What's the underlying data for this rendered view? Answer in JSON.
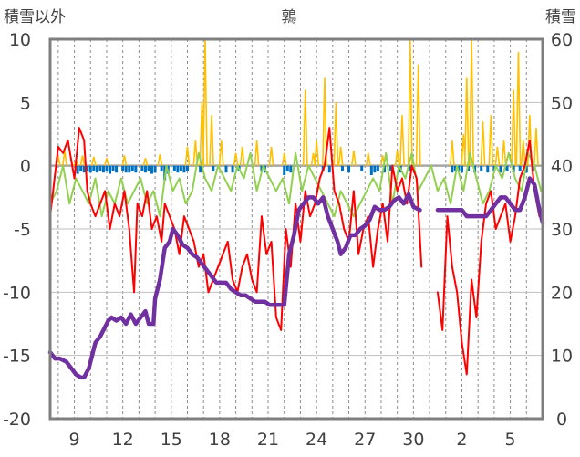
{
  "chart_data": {
    "type": "line",
    "title": "鶉",
    "ylabel_left": "積雪以外",
    "ylabel_right": "積雪",
    "ylim_left": [
      -20,
      10
    ],
    "ylim_right": [
      0,
      60
    ],
    "yticks_left": [
      "10",
      "5",
      "0",
      "-5",
      "-10",
      "-15",
      "-20"
    ],
    "yticks_right": [
      "60",
      "50",
      "40",
      "30",
      "20",
      "10",
      "0"
    ],
    "x_range_days": [
      7.5,
      38.0
    ],
    "xticks": [
      {
        "day": 9,
        "label": "9"
      },
      {
        "day": 12,
        "label": "12"
      },
      {
        "day": 15,
        "label": "15"
      },
      {
        "day": 18,
        "label": "18"
      },
      {
        "day": 21,
        "label": "21"
      },
      {
        "day": 24,
        "label": "24"
      },
      {
        "day": 27,
        "label": "27"
      },
      {
        "day": 30,
        "label": "30"
      },
      {
        "day": 33,
        "label": "2"
      },
      {
        "day": 36,
        "label": "5"
      }
    ],
    "grid": "dashed vertical lines daily, solid horizontal lines every 5",
    "colors": {
      "frame": "#7f7f7f",
      "red": "#ff0000",
      "lightgreen": "#92d050",
      "orange": "#ffc000",
      "blue": "#0070c0",
      "purple": "#7030a0",
      "zero_line": "#a6a6a6"
    },
    "series": [
      {
        "axis": "left",
        "style": "line",
        "color": "#ff0000",
        "x": [
          7.5,
          8.0,
          8.3,
          8.6,
          9.0,
          9.3,
          9.6,
          9.8,
          10.0,
          10.3,
          10.6,
          10.9,
          11.2,
          11.5,
          11.8,
          12.1,
          12.4,
          12.7,
          12.9,
          13.2,
          13.5,
          13.8,
          14.1,
          14.4,
          14.6,
          14.9,
          15.2,
          15.5,
          15.8,
          16.1,
          16.4,
          16.7,
          17.0,
          17.3,
          17.6,
          17.9,
          18.2,
          18.5,
          18.8,
          19.1,
          19.4,
          19.7,
          20.0,
          20.3,
          20.6,
          20.9,
          21.2,
          21.5,
          21.8,
          22.1,
          22.4,
          22.7,
          23.0,
          23.3,
          23.6,
          23.9,
          24.2,
          24.5,
          24.8,
          25.1,
          25.4,
          25.7,
          26.0,
          26.3,
          26.6,
          26.9,
          27.2,
          27.5,
          27.8,
          28.1,
          28.4,
          28.7,
          29.0,
          29.3,
          29.6,
          29.9,
          30.2,
          30.5
        ],
        "y": [
          -4,
          1.5,
          1,
          2,
          -1,
          3,
          2,
          -2,
          -3,
          -4,
          -3,
          -2,
          -5,
          -3,
          -4,
          -2,
          -5,
          -10,
          -3,
          -4,
          -2,
          -5,
          -4,
          -6,
          -3,
          -4,
          -5,
          -7,
          -4,
          -5,
          -6,
          -8,
          -7,
          -10,
          -9,
          -8,
          -7,
          -6,
          -9,
          -10,
          -8,
          -7,
          -9,
          -10,
          -4,
          -7,
          -6,
          -12,
          -13,
          -5,
          -8,
          -3,
          -6,
          -2,
          -4,
          -3,
          -1,
          0,
          3,
          -2,
          -3,
          -5,
          -6,
          -2,
          -7,
          -5,
          -4,
          -8,
          -5,
          -3,
          -6,
          0,
          -2,
          -1,
          -3,
          0,
          -1,
          -8
        ]
      },
      {
        "axis": "left",
        "style": "line",
        "color": "#ff0000",
        "x": [
          31.5,
          31.8,
          32.1,
          32.4,
          32.7,
          33.0,
          33.3,
          33.6,
          33.9,
          34.2,
          34.5,
          34.8,
          35.1,
          35.4,
          35.7,
          36.0,
          36.3,
          36.6,
          36.9,
          37.2,
          37.5,
          37.8
        ],
        "y": [
          -10,
          -13,
          -4,
          -8,
          -10,
          -14,
          -16.5,
          -9,
          -12,
          -6,
          -3,
          -2,
          -5,
          -4,
          -3,
          -6,
          -4,
          -1,
          0,
          2,
          -2,
          -4
        ]
      },
      {
        "axis": "left",
        "style": "line",
        "color": "#92d050",
        "x": [
          7.5,
          7.9,
          8.3,
          8.7,
          9.1,
          9.5,
          9.9,
          10.3,
          10.7,
          11.1,
          11.5,
          11.9,
          12.3,
          12.7,
          13.1,
          13.5,
          13.9,
          14.3,
          14.7,
          15.1,
          15.5,
          15.9,
          16.3,
          16.7,
          17.1,
          17.5,
          17.9,
          18.3,
          18.7,
          19.1,
          19.5,
          19.9,
          20.3,
          20.7,
          21.1,
          21.5,
          21.9,
          22.3,
          22.7,
          23.1,
          23.5,
          23.9,
          24.3,
          24.7,
          25.1,
          25.5,
          25.9,
          26.3,
          26.7,
          27.1,
          27.5,
          27.9,
          28.3,
          28.7,
          29.1,
          29.5,
          29.9,
          30.3,
          30.7,
          31.1,
          31.5,
          31.9,
          32.3,
          32.7,
          33.1,
          33.5,
          33.9,
          34.3,
          34.7,
          35.1,
          35.5,
          35.9,
          36.3,
          36.7,
          37.1,
          37.5,
          37.9
        ],
        "y": [
          -3,
          -2,
          0,
          -3,
          -1,
          -2,
          -3,
          -1,
          -4,
          -2,
          -3,
          -1,
          -3,
          -2,
          -1,
          -3,
          -2,
          -4,
          0,
          -2,
          -1,
          -3,
          -2,
          1,
          -1,
          -2,
          0,
          -1,
          -2,
          0,
          -1,
          1,
          -2,
          0,
          -1,
          -2,
          -1,
          -3,
          1,
          -2,
          0,
          -1,
          -2,
          -3,
          -4,
          -2,
          -3,
          -4,
          -3,
          -2,
          -1,
          -2,
          1,
          -3,
          0,
          -1,
          1,
          -2,
          -1,
          0,
          -2,
          -1,
          -3,
          0,
          -2,
          1,
          -1,
          -3,
          -2,
          0,
          -1,
          1,
          -1,
          -2,
          1,
          0,
          -2
        ]
      },
      {
        "axis": "left",
        "style": "spikes",
        "color": "#ffc000",
        "x": [
          8.0,
          8.4,
          9.1,
          9.5,
          10.2,
          11.0,
          12.1,
          13.4,
          14.3,
          16.0,
          16.5,
          16.9,
          17.1,
          17.5,
          18.1,
          19.0,
          19.4,
          20.3,
          21.2,
          22.0,
          23.3,
          23.8,
          24.0,
          24.5,
          25.2,
          25.5,
          26.3,
          27.2,
          28.1,
          29.0,
          29.3,
          29.8,
          30.3,
          32.4,
          33.1,
          33.3,
          33.6,
          34.3,
          34.8,
          35.2,
          35.6,
          36.2,
          36.5,
          36.8,
          37.2,
          37.6
        ],
        "y": [
          0.8,
          1.2,
          0.5,
          0.8,
          0.7,
          0.6,
          0.8,
          0.6,
          0.9,
          1.5,
          2,
          5,
          10,
          4,
          2,
          1,
          1.5,
          2,
          1.5,
          1,
          6,
          1,
          2,
          7,
          5,
          1.5,
          1.2,
          1,
          0.8,
          1.2,
          4,
          10,
          8,
          2,
          2.5,
          7,
          10,
          3.5,
          4,
          1.5,
          2,
          6,
          9,
          2,
          4,
          3
        ]
      },
      {
        "axis": "left",
        "style": "bars",
        "color": "#0070c0",
        "x": [
          9.2,
          9.4,
          9.6,
          9.8,
          10.0,
          10.2,
          10.4,
          10.6,
          10.8,
          11.0,
          11.2,
          11.4,
          11.6,
          12.0,
          12.2,
          12.4,
          12.6,
          12.8,
          13.2,
          13.4,
          13.6,
          13.8,
          14.0,
          14.4,
          14.6,
          14.8,
          15.2,
          15.4,
          15.6,
          15.8,
          16.0,
          16.8,
          17.6,
          18.4,
          18.8,
          19.2,
          20.6,
          20.8,
          22.0,
          22.2,
          22.4,
          24.4,
          24.8,
          25.6,
          26.0,
          26.8,
          27.4,
          27.6,
          27.8,
          28.2,
          28.6,
          29.2,
          29.8,
          32.4,
          32.6,
          32.8,
          33.0,
          33.4,
          33.8,
          34.2,
          34.6,
          35.0,
          35.4,
          35.8,
          36.2,
          36.6,
          37.0,
          37.4
        ],
        "y": [
          -0.5,
          -0.3,
          -0.4,
          -0.3,
          -0.4,
          -0.3,
          -0.4,
          -0.3,
          -0.4,
          -0.3,
          -0.5,
          -0.3,
          -0.4,
          -0.3,
          -0.4,
          -0.4,
          -0.3,
          -0.4,
          -0.3,
          -0.4,
          -0.3,
          -0.5,
          -0.4,
          -0.3,
          -1.0,
          -0.5,
          -0.3,
          -0.4,
          -0.3,
          -0.4,
          -0.3,
          -0.4,
          -0.3,
          -0.4,
          -0.4,
          -0.3,
          -0.3,
          -0.4,
          -0.6,
          -0.3,
          -0.4,
          -0.3,
          -0.4,
          -0.3,
          -0.4,
          -0.3,
          -0.6,
          -0.4,
          -0.3,
          -0.4,
          -0.3,
          -0.4,
          -0.3,
          -0.4,
          -0.3,
          -0.3,
          -0.4,
          -0.3,
          -0.4,
          -0.3,
          -0.4,
          -0.3,
          -0.4,
          -0.3,
          -0.4,
          -0.3,
          -0.4,
          -0.3
        ]
      },
      {
        "axis": "right",
        "style": "thick-line",
        "color": "#7030a0",
        "x": [
          7.5,
          7.8,
          8.1,
          8.5,
          8.8,
          9.1,
          9.4,
          9.6,
          9.9,
          10.1,
          10.3,
          10.6,
          10.8,
          11.1,
          11.3,
          11.6,
          11.9,
          12.2,
          12.5,
          12.8,
          13.1,
          13.4,
          13.6,
          13.9,
          14.0,
          14.3,
          14.6,
          14.9,
          15.1,
          15.4,
          15.7,
          16.0,
          16.3,
          16.6,
          16.9,
          17.2,
          17.5,
          17.8,
          18.1,
          18.4,
          18.7,
          19.0,
          19.3,
          19.6,
          19.9,
          20.2,
          20.5,
          20.8,
          21.1,
          21.4,
          21.7,
          22.0,
          22.3,
          22.6,
          22.9,
          23.2,
          23.5,
          23.8,
          24.1,
          24.4,
          24.7,
          25.0,
          25.3,
          25.5,
          25.8,
          26.1,
          26.4,
          26.7,
          27.0,
          27.3,
          27.6,
          27.9,
          28.2,
          28.5,
          28.8,
          29.1,
          29.4,
          29.7,
          30.0,
          30.4
        ],
        "y": [
          10.5,
          9.5,
          9.5,
          9,
          8,
          7,
          6.5,
          6.5,
          8,
          10,
          12,
          13,
          14,
          15.5,
          16,
          15.5,
          16,
          15,
          16.5,
          15,
          16,
          17,
          15,
          15,
          19,
          22,
          27,
          28,
          30,
          29,
          27.5,
          27,
          26,
          25.5,
          24.5,
          23.5,
          22.5,
          21.5,
          21.5,
          21.5,
          20.5,
          20,
          19.5,
          19.5,
          19,
          18.5,
          18.5,
          18.5,
          18,
          18,
          18,
          18,
          26,
          29,
          33,
          34,
          35,
          35,
          34,
          35,
          32,
          30,
          28,
          26,
          27,
          29,
          29,
          30,
          30.5,
          31.5,
          33.5,
          33,
          33,
          33.5,
          34.5,
          35,
          34,
          35.5,
          33.5,
          33
        ]
      },
      {
        "axis": "right",
        "style": "thick-line",
        "color": "#7030a0",
        "x": [
          31.5,
          31.8,
          32.1,
          32.4,
          32.7,
          33.0,
          33.3,
          33.6,
          33.9,
          34.2,
          34.5,
          34.8,
          35.1,
          35.4,
          35.7,
          36.0,
          36.3,
          36.6,
          36.9,
          37.2,
          37.5,
          37.8,
          38.0
        ],
        "y": [
          33,
          33,
          33,
          33,
          33,
          33,
          32,
          32,
          32,
          32,
          32,
          33,
          34,
          35,
          35,
          34,
          33,
          33,
          35,
          38,
          37,
          33,
          31
        ]
      }
    ]
  }
}
